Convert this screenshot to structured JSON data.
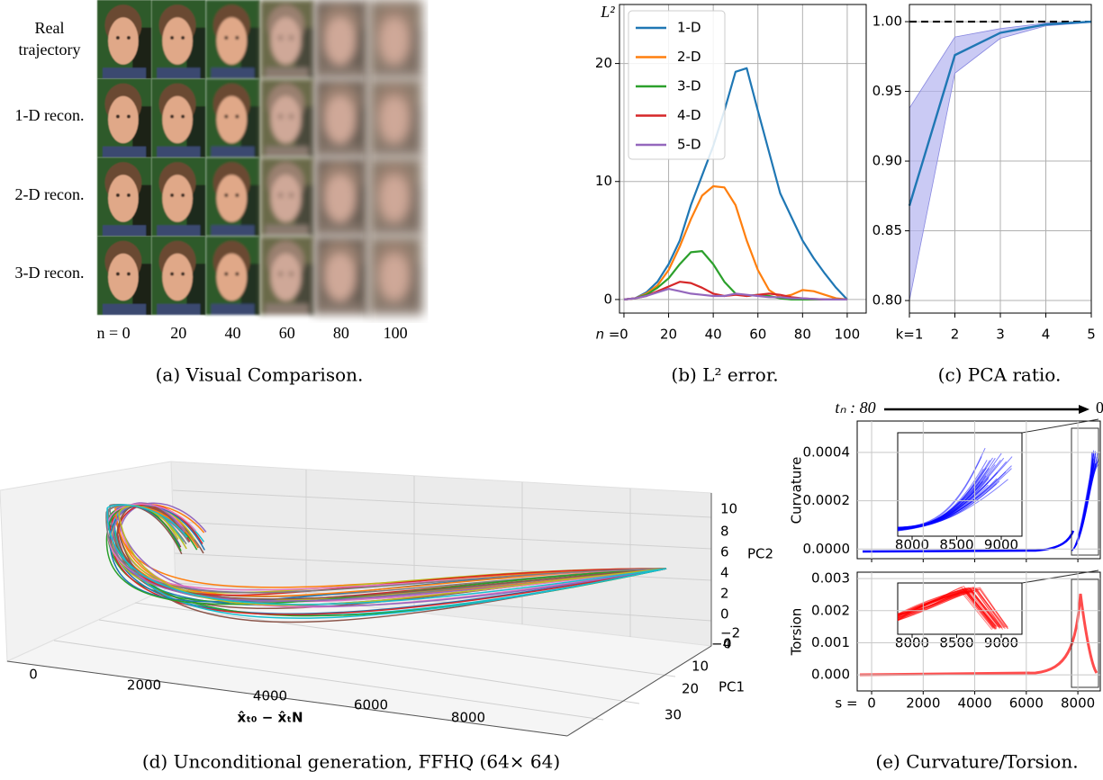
{
  "panel_a": {
    "row_labels": [
      "Real",
      "trajectory",
      "1-D recon.",
      "2-D recon.",
      "3-D recon."
    ],
    "col_labels": [
      "n = 0",
      "20",
      "40",
      "60",
      "80",
      "100"
    ],
    "caption": "(a) Visual Comparison."
  },
  "chart_data": [
    {
      "type": "line",
      "caption": "(b) L² error.",
      "y_label": "L²",
      "x_prefix": "n =",
      "x": [
        0,
        5,
        10,
        15,
        20,
        25,
        30,
        35,
        40,
        45,
        50,
        55,
        60,
        65,
        70,
        75,
        80,
        85,
        90,
        95,
        100
      ],
      "series": [
        {
          "name": "1-D",
          "color": "#1f77b4",
          "values": [
            0,
            0.1,
            0.6,
            1.5,
            3,
            5,
            8,
            10.5,
            13,
            16,
            19.3,
            19.6,
            16,
            12.5,
            9,
            7,
            5,
            3.5,
            2.2,
            1,
            0
          ]
        },
        {
          "name": "2-D",
          "color": "#ff7f0e",
          "values": [
            0,
            0.1,
            0.5,
            1.2,
            2.5,
            4.5,
            6.8,
            8.8,
            9.6,
            9.5,
            8,
            5,
            2.5,
            0.8,
            0.2,
            0.4,
            0.8,
            0.7,
            0.4,
            0.1,
            0
          ]
        },
        {
          "name": "3-D",
          "color": "#2ca02c",
          "values": [
            0,
            0.1,
            0.4,
            1,
            1.8,
            3,
            4,
            4.1,
            3,
            1.5,
            0.5,
            0.3,
            0.4,
            0.3,
            0.1,
            0,
            0,
            0,
            0,
            0,
            0
          ]
        },
        {
          "name": "4-D",
          "color": "#d62728",
          "values": [
            0,
            0.1,
            0.3,
            0.7,
            1.1,
            1.5,
            1.4,
            1,
            0.5,
            0.3,
            0.4,
            0.3,
            0.4,
            0.5,
            0.4,
            0.2,
            0.1,
            0.05,
            0,
            0,
            0
          ]
        },
        {
          "name": "5-D",
          "color": "#9467bd",
          "values": [
            0,
            0.1,
            0.3,
            0.6,
            0.9,
            0.7,
            0.5,
            0.4,
            0.3,
            0.3,
            0.5,
            0.4,
            0.3,
            0.2,
            0.2,
            0.1,
            0.1,
            0.05,
            0,
            0,
            0
          ]
        }
      ],
      "xlim": [
        -2,
        108.5
      ],
      "ylim": [
        -1.15,
        25
      ],
      "xticks": [
        0,
        20,
        40,
        60,
        80,
        100
      ],
      "yticks": [
        0,
        10,
        20
      ],
      "ytick_color": "#ff0000",
      "grid": true,
      "legend": "upper left"
    },
    {
      "type": "band-line",
      "caption": "(c) PCA ratio.",
      "x": [
        1,
        2,
        3,
        4,
        5
      ],
      "values": [
        0.868,
        0.976,
        0.992,
        0.998,
        1.0
      ],
      "lower": [
        0.8,
        0.963,
        0.988,
        0.997,
        0.9995
      ],
      "upper": [
        0.938,
        0.989,
        0.995,
        0.999,
        1.0
      ],
      "color": "#1f77b4",
      "band_color": "#b4b4f0",
      "reference": 1.0,
      "xlim": [
        1,
        5
      ],
      "ylim": [
        0.791,
        1.0123
      ],
      "xticks": [
        {
          "value": 1,
          "label": "k=1"
        },
        2,
        3,
        4,
        5
      ],
      "yticks": [
        {
          "value": 0.8,
          "label": "0.80"
        },
        {
          "value": 0.85,
          "label": "0.85"
        },
        {
          "value": 0.9,
          "label": "0.90"
        },
        {
          "value": 0.95,
          "label": "0.95"
        },
        {
          "value": 1.0,
          "label": "1.00"
        }
      ],
      "grid": true
    }
  ],
  "panel_d": {
    "pc2_ticks": [
      "10",
      "8",
      "6",
      "4",
      "2",
      "0",
      "−2",
      "−4"
    ],
    "pc2_label": "PC2",
    "pc1_ticks": [
      "0",
      "10",
      "20",
      "30"
    ],
    "pc1_label": "PC1",
    "x_ticks": [
      "0",
      "2000",
      "4000",
      "6000",
      "8000"
    ],
    "x_label": "x̂ₜ₀ − x̂ₜN",
    "caption": "(d) Unconditional generation, FFHQ (64× 64)"
  },
  "panel_e": {
    "time_start": "tₙ : 80",
    "time_end": "0",
    "x_prefix": "s =",
    "xlim": [
      -560,
      8870
    ],
    "xticks": [
      0,
      2000,
      4000,
      6000,
      8000
    ],
    "curvature_label": "Curvature",
    "curvature_ylim": [
      -4e-05,
      0.00053
    ],
    "curvature_yticks": [
      {
        "value": 0,
        "label": "0.0000"
      },
      {
        "value": 0.0002,
        "label": "0.0002"
      },
      {
        "value": 0.0004,
        "label": "0.0004"
      }
    ],
    "torsion_label": "Torsion",
    "torsion_ylim": [
      -0.0005,
      0.0032
    ],
    "torsion_yticks": [
      {
        "value": 0,
        "label": "0.000"
      },
      {
        "value": 0.001,
        "label": "0.001"
      },
      {
        "value": 0.002,
        "label": "0.002"
      },
      {
        "value": 0.003,
        "label": "0.003"
      }
    ],
    "inset_xticks": [
      8000,
      8500,
      9000
    ],
    "caption": "(e) Curvature/Torsion."
  }
}
